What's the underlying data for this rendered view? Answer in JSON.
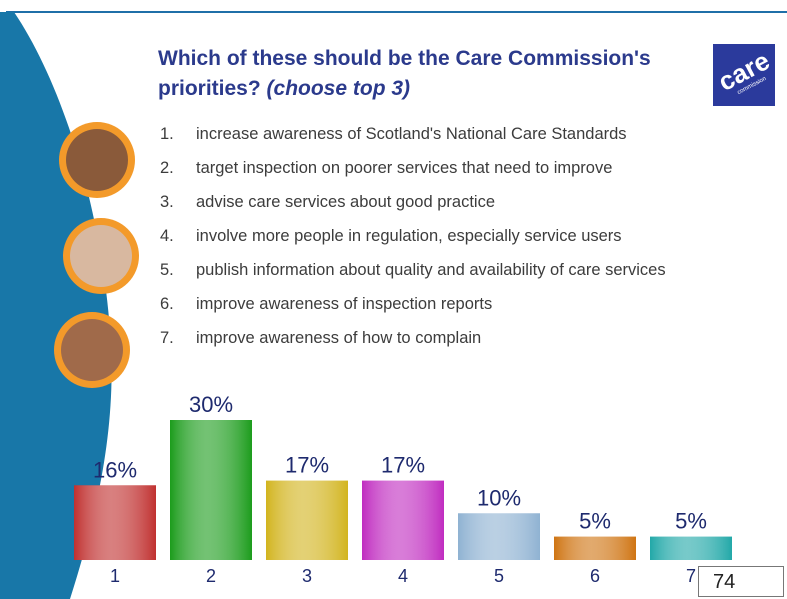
{
  "chart_data": {
    "type": "bar",
    "title": "Which of these should be the Care Commission's priorities?",
    "subtitle": "(choose top 3)",
    "logo": "care",
    "logo_subtext": "commission",
    "items": [
      {
        "number": "1.",
        "text": "increase awareness of Scotland's National Care Standards"
      },
      {
        "number": "2.",
        "text": "target inspection on poorer services that need to improve"
      },
      {
        "number": "3.",
        "text": "advise care services about good practice"
      },
      {
        "number": "4.",
        "text": "involve more people in regulation, especially service users"
      },
      {
        "number": "5.",
        "text": "publish information about quality and availability of care services"
      },
      {
        "number": "6.",
        "text": "improve awareness of inspection reports"
      },
      {
        "number": "7.",
        "text": "improve awareness of how to complain"
      }
    ],
    "categories": [
      "1",
      "2",
      "3",
      "4",
      "5",
      "6",
      "7"
    ],
    "values": [
      16,
      30,
      17,
      17,
      10,
      5,
      5
    ],
    "value_labels": [
      "16%",
      "30%",
      "17%",
      "17%",
      "10%",
      "5%",
      "5%"
    ],
    "colors": [
      "#c0302f",
      "#1c9c1c",
      "#d2b41e",
      "#c02cc0",
      "#8fb2d2",
      "#cf7412",
      "#22a8a8"
    ],
    "page_number": "74"
  }
}
